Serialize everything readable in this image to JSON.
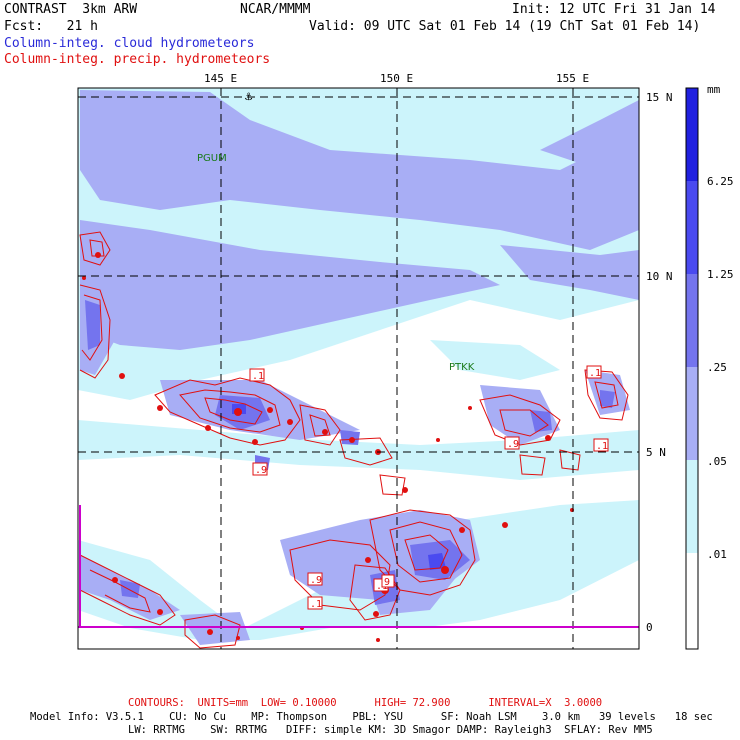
{
  "header": {
    "title": "CONTRAST  3km ARW",
    "source": "NCAR/MMMM",
    "init": "Init: 12 UTC Fri 31 Jan 14",
    "fcst": "Fcst:   21 h",
    "valid": "Valid: 09 UTC Sat 01 Feb 14 (19 ChT Sat 01 Feb 14)",
    "field1": "Column-integ. cloud hydrometeors",
    "field2": "Column-integ. precip. hydrometeors"
  },
  "map": {
    "lon_labels": [
      "145 E",
      "150 E",
      "155 E"
    ],
    "lat_labels": [
      "15 N",
      "10 N",
      "5 N",
      "0"
    ],
    "stations": [
      "PGUM",
      "PTKK"
    ],
    "contour_labels": [
      ".1",
      ".9",
      ".1",
      ".1",
      ".9",
      ".1",
      ".9",
      ".1",
      "9"
    ]
  },
  "colorbar": {
    "unit": "mm",
    "levels": [
      "6.25",
      "1.25",
      ".25",
      ".05",
      ".01"
    ],
    "colors": [
      "#2020e0",
      "#4a4af0",
      "#7474ee",
      "#a8aef5",
      "#ccf4fb",
      "#ffffff"
    ]
  },
  "footer": {
    "contours": "CONTOURS:  UNITS=mm  LOW= 0.10000      HIGH= 72.900      INTERVAL=X  3.0000",
    "model1": "Model Info: V3.5.1    CU: No Cu    MP: Thompson    PBL: YSU      SF: Noah LSM    3.0 km   39 levels   18 sec",
    "model2": "LW: RRTMG    SW: RRTMG   DIFF: simple KM: 3D Smagor DAMP: Rayleigh3  SFLAY: Rev MM5"
  }
}
